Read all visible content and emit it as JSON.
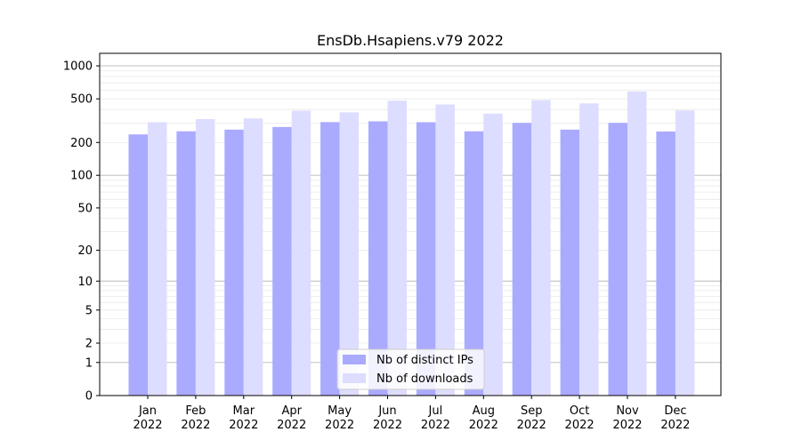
{
  "chart_data": {
    "type": "bar",
    "title": "EnsDb.Hsapiens.v79 2022",
    "xlabel": "",
    "ylabel": "",
    "yscale": "symlog",
    "ylim": [
      0,
      1300
    ],
    "yticks": [
      0,
      1,
      2,
      5,
      10,
      20,
      50,
      100,
      200,
      500,
      1000
    ],
    "grid": true,
    "legend_position": "bottom-center",
    "categories": [
      [
        "Jan",
        "2022"
      ],
      [
        "Feb",
        "2022"
      ],
      [
        "Mar",
        "2022"
      ],
      [
        "Apr",
        "2022"
      ],
      [
        "May",
        "2022"
      ],
      [
        "Jun",
        "2022"
      ],
      [
        "Jul",
        "2022"
      ],
      [
        "Aug",
        "2022"
      ],
      [
        "Sep",
        "2022"
      ],
      [
        "Oct",
        "2022"
      ],
      [
        "Nov",
        "2022"
      ],
      [
        "Dec",
        "2022"
      ]
    ],
    "series": [
      {
        "name": "Nb of distinct IPs",
        "color": "#aaaaff",
        "values": [
          237,
          253,
          262,
          277,
          307,
          312,
          306,
          253,
          302,
          262,
          302,
          252
        ]
      },
      {
        "name": "Nb of downloads",
        "color": "#ddddff",
        "values": [
          306,
          327,
          332,
          390,
          377,
          482,
          445,
          367,
          487,
          455,
          585,
          392
        ]
      }
    ]
  }
}
